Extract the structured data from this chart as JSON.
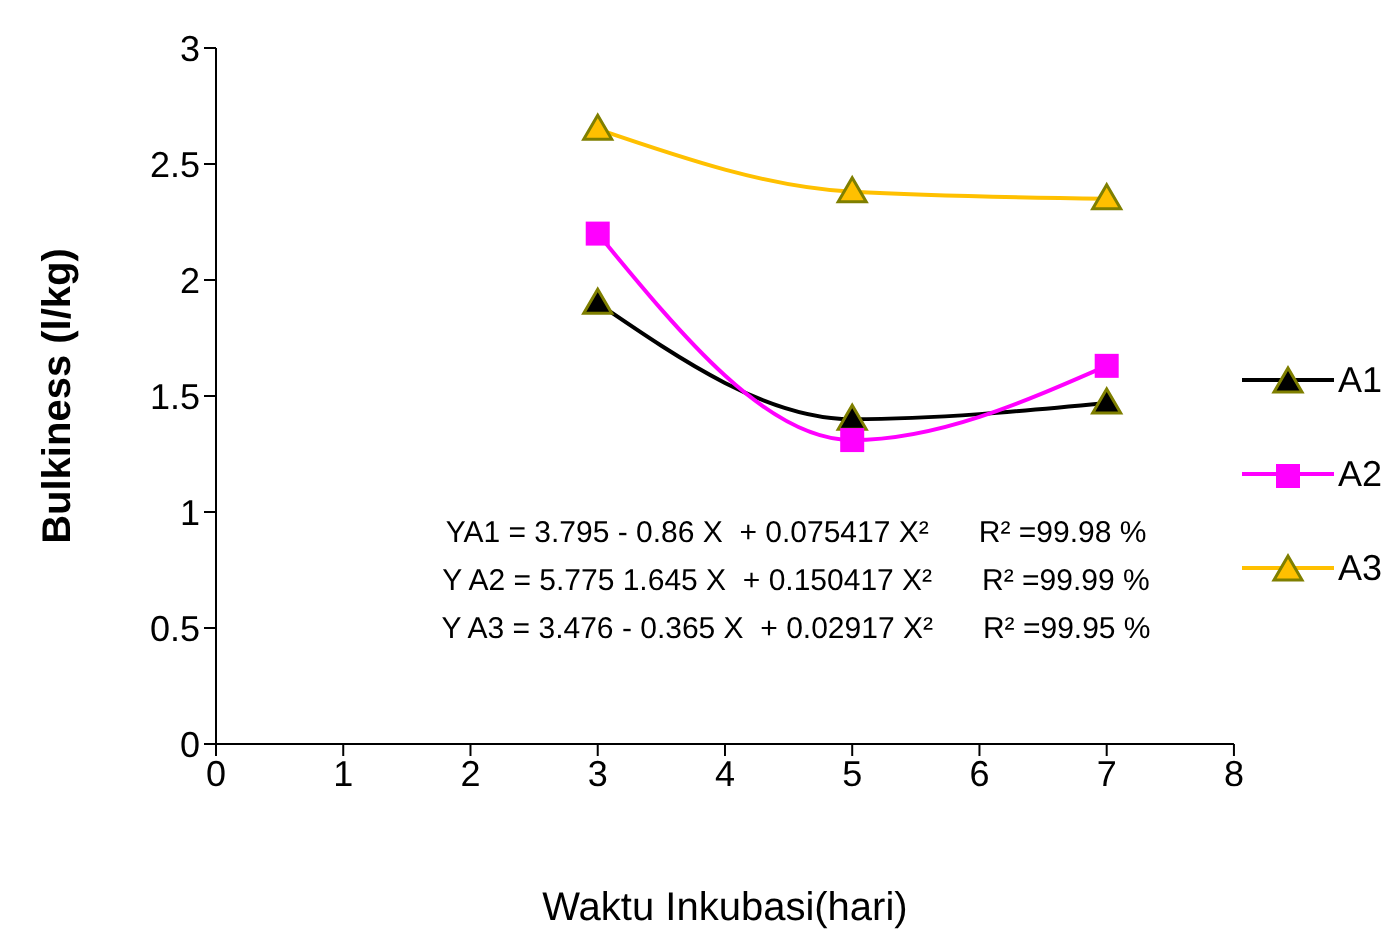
{
  "chart_data": {
    "type": "line",
    "xlabel": "Waktu Inkubasi(hari)",
    "ylabel": "Bulkiness (l/kg)",
    "x": [
      3,
      5,
      7
    ],
    "series": [
      {
        "name": "A1",
        "color": "#000000",
        "marker": "triangle",
        "values": [
          1.9,
          1.4,
          1.47
        ]
      },
      {
        "name": "A2",
        "color": "#ff00ff",
        "marker": "square",
        "values": [
          2.2,
          1.31,
          1.63
        ]
      },
      {
        "name": "A3",
        "color": "#ffc000",
        "marker": "triangle",
        "values": [
          2.65,
          2.38,
          2.35
        ]
      }
    ],
    "xlim": [
      0,
      8
    ],
    "xticks": [
      0,
      1,
      2,
      3,
      4,
      5,
      6,
      7,
      8
    ],
    "ylim": [
      0,
      3
    ],
    "yticks": [
      0,
      0.5,
      1,
      1.5,
      2,
      2.5,
      3
    ],
    "grid": false,
    "legend": "right",
    "line_style": "solid",
    "annotations": [
      "YA1 = 3.795 - 0.86 X  + 0.075417 X²      R² =99.98 %",
      "Y A2 = 5.775 1.645 X  + 0.150417 X²      R² =99.99 %",
      "Y A3 = 3.476 - 0.365 X  + 0.02917 X²      R² =99.95 %"
    ]
  }
}
